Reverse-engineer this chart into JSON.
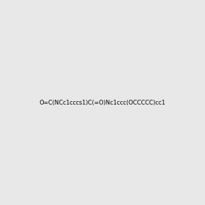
{
  "smiles": "O=C(NCc1cccs1)C(=O)Nc1ccc(OCCCCC)cc1",
  "image_size": 300,
  "background_color": "#e8e8e8",
  "atom_colors": {
    "N": "#0000ff",
    "O": "#ff0000",
    "S": "#cccc00"
  },
  "title": ""
}
